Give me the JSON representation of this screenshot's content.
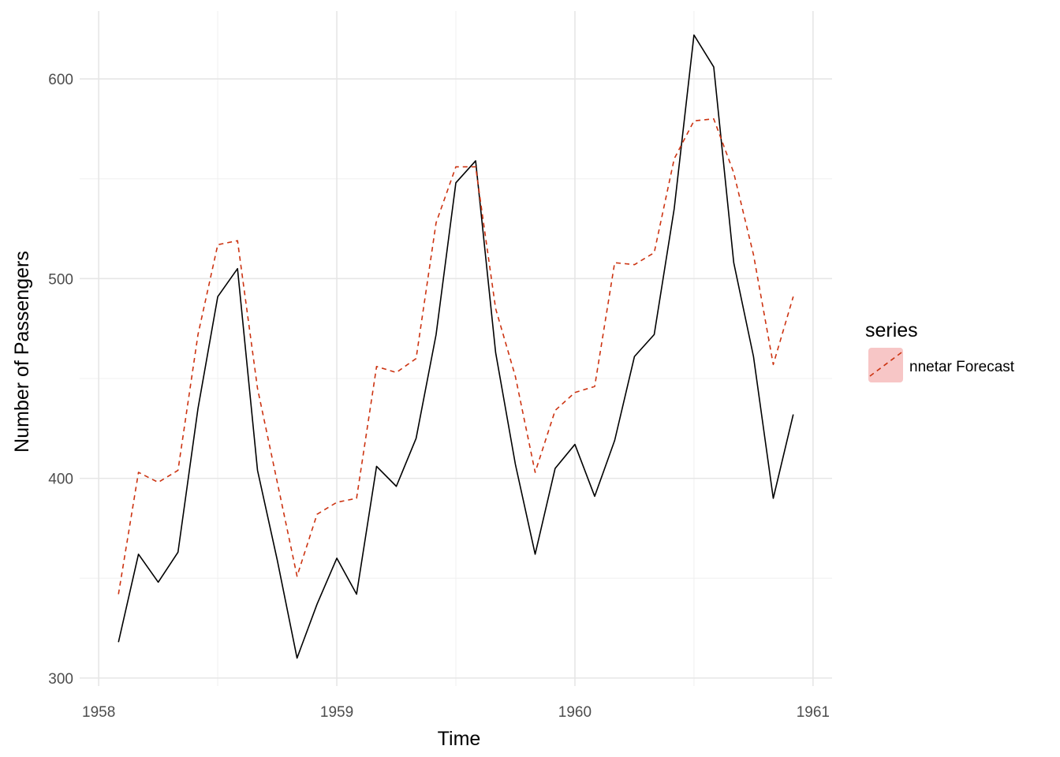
{
  "chart_data": {
    "type": "line",
    "title": "",
    "xlabel": "Time",
    "ylabel": "Number of Passengers",
    "xlim": [
      1957.92,
      1961.08
    ],
    "ylim": [
      296,
      634
    ],
    "x_ticks": [
      1958,
      1959,
      1960,
      1961
    ],
    "x_tick_labels": [
      "1958",
      "1959",
      "1960",
      "1961"
    ],
    "y_ticks": [
      300,
      400,
      500,
      600
    ],
    "y_tick_labels": [
      "300",
      "400",
      "500",
      "600"
    ],
    "y_minor_ticks": [
      350,
      450,
      550
    ],
    "x_minor_ticks": [
      1958.5,
      1959.5,
      1960.5
    ],
    "grid": true,
    "legend": {
      "title": "series",
      "position": "right",
      "entries": [
        {
          "label": "nnetar Forecast",
          "color": "#cc3311",
          "style": "dashed",
          "fill": "#f7c6c6"
        }
      ]
    },
    "x": [
      1958.083,
      1958.167,
      1958.25,
      1958.333,
      1958.417,
      1958.5,
      1958.583,
      1958.667,
      1958.75,
      1958.833,
      1958.917,
      1959.0,
      1959.083,
      1959.167,
      1959.25,
      1959.333,
      1959.417,
      1959.5,
      1959.583,
      1959.667,
      1959.75,
      1959.833,
      1959.917,
      1960.0,
      1960.083,
      1960.167,
      1960.25,
      1960.333,
      1960.417,
      1960.5,
      1960.583,
      1960.667,
      1960.75,
      1960.833,
      1960.917
    ],
    "series": [
      {
        "values": [
          318,
          362,
          348,
          363,
          435,
          491,
          505,
          404,
          359,
          310,
          337,
          360,
          342,
          406,
          396,
          420,
          472,
          548,
          559,
          463,
          407,
          362,
          405,
          417,
          391,
          419,
          461,
          472,
          535,
          622,
          606,
          508,
          461,
          390,
          432
        ],
        "color": "#000000",
        "style": "solid"
      },
      {
        "name": "nnetar Forecast",
        "values": [
          342,
          403,
          398,
          404,
          472,
          517,
          519,
          445,
          398,
          351,
          382,
          388,
          390,
          456,
          453,
          460,
          528,
          556,
          556,
          485,
          451,
          403,
          434,
          443,
          446,
          508,
          507,
          513,
          560,
          579,
          580,
          553,
          512,
          457,
          491
        ],
        "color": "#cc3311",
        "style": "dashed"
      }
    ]
  }
}
